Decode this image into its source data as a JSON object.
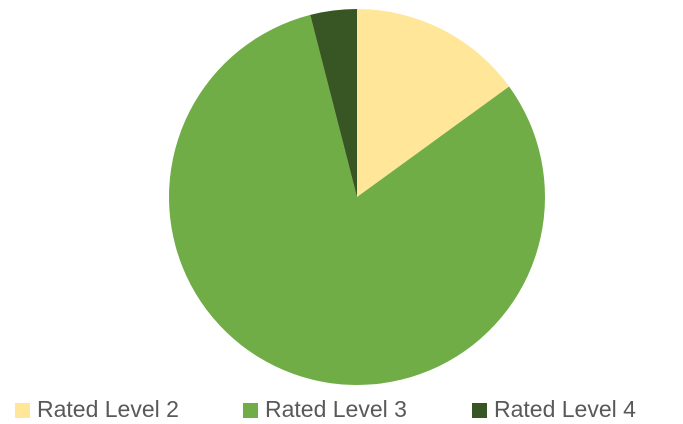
{
  "chart_data": {
    "type": "pie",
    "categories": [
      "Rated Level 2",
      "Rated Level 3",
      "Rated Level 4"
    ],
    "values": [
      15,
      81,
      4
    ],
    "colors": [
      "#FFE699",
      "#70AD47",
      "#375623"
    ]
  }
}
